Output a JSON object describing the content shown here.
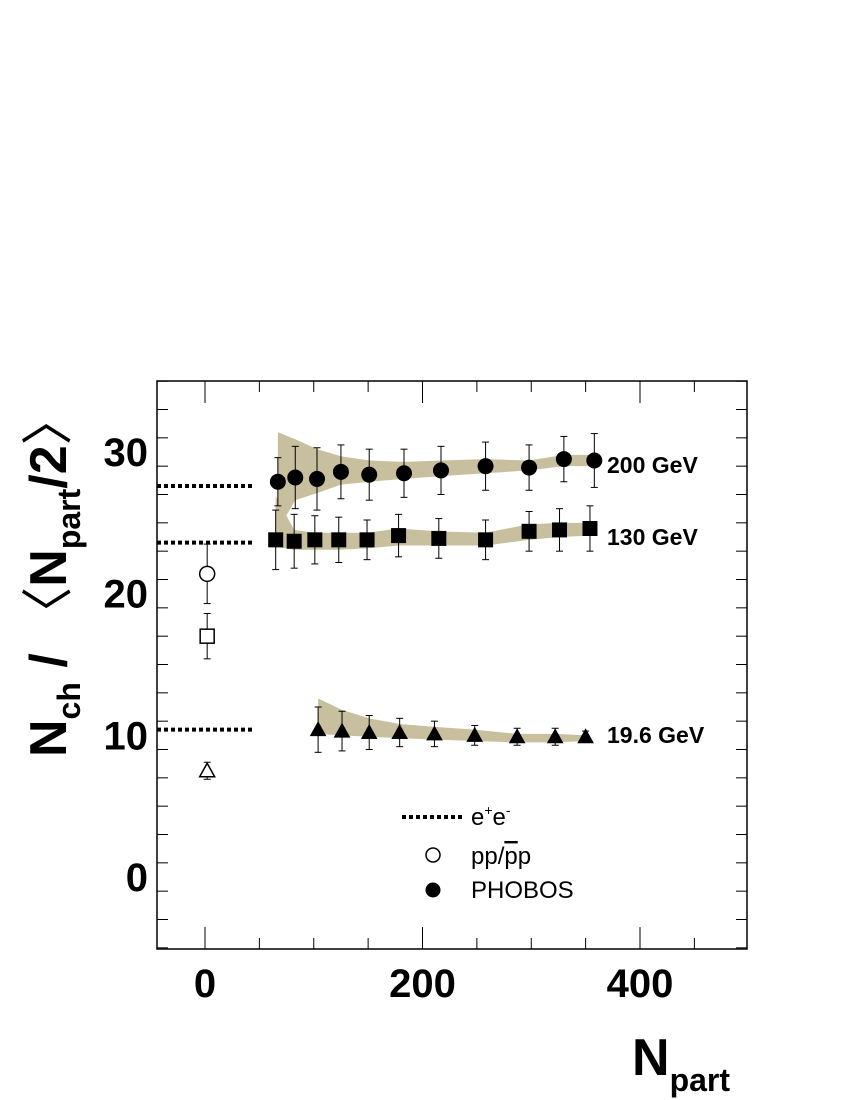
{
  "chart_data": {
    "type": "scatter",
    "xlabel": "N",
    "xlabel_sub": "part",
    "ylabel": {
      "n": "N",
      "ch": "ch",
      "slash": " / ",
      "open": "〈",
      "n2": "N",
      "part": "part",
      "half": "/2",
      "close": "〉"
    },
    "xlim": [
      -45,
      500
    ],
    "ylim": [
      -5,
      35
    ],
    "x_ticks": [
      {
        "value": 0,
        "label": "0"
      },
      {
        "value": 200,
        "label": "200"
      },
      {
        "value": 400,
        "label": "400"
      }
    ],
    "y_ticks": [
      {
        "value": 0,
        "label": "0"
      },
      {
        "value": 10,
        "label": "10"
      },
      {
        "value": 20,
        "label": "20"
      },
      {
        "value": 30,
        "label": "30"
      }
    ],
    "band_color": "#c8bf9e",
    "series": [
      {
        "name": "200 GeV",
        "label": "200 GeV",
        "marker": "circle",
        "ee": 27.6,
        "pp": {
          "x": 2,
          "y": 21.4,
          "err": 2.1
        },
        "points": [
          {
            "x": 67,
            "y": 27.9,
            "err": 1.7
          },
          {
            "x": 83,
            "y": 28.2,
            "err": 2.2
          },
          {
            "x": 103,
            "y": 28.1,
            "err": 2.2
          },
          {
            "x": 125,
            "y": 28.6,
            "err": 1.9
          },
          {
            "x": 151,
            "y": 28.4,
            "err": 1.8
          },
          {
            "x": 183,
            "y": 28.5,
            "err": 1.7
          },
          {
            "x": 217,
            "y": 28.7,
            "err": 1.7
          },
          {
            "x": 258,
            "y": 29.0,
            "err": 1.7
          },
          {
            "x": 298,
            "y": 28.9,
            "err": 1.6
          },
          {
            "x": 330,
            "y": 29.5,
            "err": 1.6
          },
          {
            "x": 358,
            "y": 29.4,
            "err": 1.9
          }
        ],
        "band": [
          {
            "x": 67,
            "lo": 24.5,
            "hi": 31.4
          },
          {
            "x": 83,
            "lo": 26.6,
            "hi": 30.9
          },
          {
            "x": 103,
            "lo": 27.1,
            "hi": 30.2
          },
          {
            "x": 125,
            "lo": 27.7,
            "hi": 29.7
          },
          {
            "x": 151,
            "lo": 27.9,
            "hi": 29.4
          },
          {
            "x": 183,
            "lo": 28.1,
            "hi": 29.3
          },
          {
            "x": 217,
            "lo": 28.3,
            "hi": 29.4
          },
          {
            "x": 258,
            "lo": 28.5,
            "hi": 29.5
          },
          {
            "x": 298,
            "lo": 28.7,
            "hi": 29.4
          },
          {
            "x": 330,
            "lo": 29.0,
            "hi": 29.8
          },
          {
            "x": 358,
            "lo": 29.0,
            "hi": 29.8
          }
        ]
      },
      {
        "name": "130 GeV",
        "label": "130 GeV",
        "marker": "square",
        "ee": 23.6,
        "pp": {
          "x": 2,
          "y": 17.0,
          "err": 1.6
        },
        "points": [
          {
            "x": 65,
            "y": 23.8,
            "err": 2.1
          },
          {
            "x": 82,
            "y": 23.7,
            "err": 1.9
          },
          {
            "x": 101,
            "y": 23.8,
            "err": 1.7
          },
          {
            "x": 123,
            "y": 23.8,
            "err": 1.6
          },
          {
            "x": 149,
            "y": 23.8,
            "err": 1.4
          },
          {
            "x": 178,
            "y": 24.1,
            "err": 1.5
          },
          {
            "x": 215,
            "y": 23.9,
            "err": 1.4
          },
          {
            "x": 258,
            "y": 23.8,
            "err": 1.4
          },
          {
            "x": 298,
            "y": 24.4,
            "err": 1.4
          },
          {
            "x": 326,
            "y": 24.5,
            "err": 1.5
          },
          {
            "x": 354,
            "y": 24.6,
            "err": 1.6
          }
        ],
        "band": [
          {
            "x": 65,
            "lo": 23.3,
            "hi": 26.9
          },
          {
            "x": 82,
            "lo": 23.1,
            "hi": 24.5
          },
          {
            "x": 101,
            "lo": 23.1,
            "hi": 24.3
          },
          {
            "x": 123,
            "lo": 23.1,
            "hi": 24.3
          },
          {
            "x": 149,
            "lo": 23.2,
            "hi": 24.3
          },
          {
            "x": 178,
            "lo": 23.4,
            "hi": 24.6
          },
          {
            "x": 215,
            "lo": 23.4,
            "hi": 24.4
          },
          {
            "x": 258,
            "lo": 23.4,
            "hi": 24.3
          },
          {
            "x": 298,
            "lo": 23.8,
            "hi": 24.9
          },
          {
            "x": 326,
            "lo": 24.0,
            "hi": 25.0
          },
          {
            "x": 354,
            "lo": 24.1,
            "hi": 25.0
          }
        ]
      },
      {
        "name": "19.6 GeV",
        "label": "19.6 GeV",
        "marker": "triangle",
        "ee": 10.4,
        "pp": {
          "x": 2,
          "y": 7.5,
          "err": 0.6
        },
        "points": [
          {
            "x": 104,
            "y": 10.4,
            "err": 1.6
          },
          {
            "x": 126,
            "y": 10.3,
            "err": 1.4
          },
          {
            "x": 151,
            "y": 10.2,
            "err": 1.2
          },
          {
            "x": 179,
            "y": 10.2,
            "err": 1.0
          },
          {
            "x": 211,
            "y": 10.1,
            "err": 0.9
          },
          {
            "x": 248,
            "y": 10.0,
            "err": 0.7
          },
          {
            "x": 287,
            "y": 9.9,
            "err": 0.6
          },
          {
            "x": 322,
            "y": 9.9,
            "err": 0.6
          },
          {
            "x": 350,
            "y": 9.9,
            "err": 0.4
          }
        ],
        "band": [
          {
            "x": 104,
            "lo": 10.1,
            "hi": 12.6
          },
          {
            "x": 126,
            "lo": 10.0,
            "hi": 11.8
          },
          {
            "x": 151,
            "lo": 9.9,
            "hi": 11.2
          },
          {
            "x": 179,
            "lo": 9.8,
            "hi": 10.8
          },
          {
            "x": 211,
            "lo": 9.7,
            "hi": 10.6
          },
          {
            "x": 248,
            "lo": 9.6,
            "hi": 10.4
          },
          {
            "x": 287,
            "lo": 9.5,
            "hi": 10.1
          },
          {
            "x": 322,
            "lo": 9.5,
            "hi": 10.1
          },
          {
            "x": 350,
            "lo": 9.6,
            "hi": 10.0
          }
        ]
      }
    ],
    "legend": {
      "ee": {
        "text": "e",
        "sup1": "+",
        "text2": "e",
        "sup2": "-"
      },
      "pp": {
        "text": "pp/",
        "bar": "p",
        "text2": "p"
      },
      "phobos": {
        "text": "PHOBOS"
      }
    }
  }
}
